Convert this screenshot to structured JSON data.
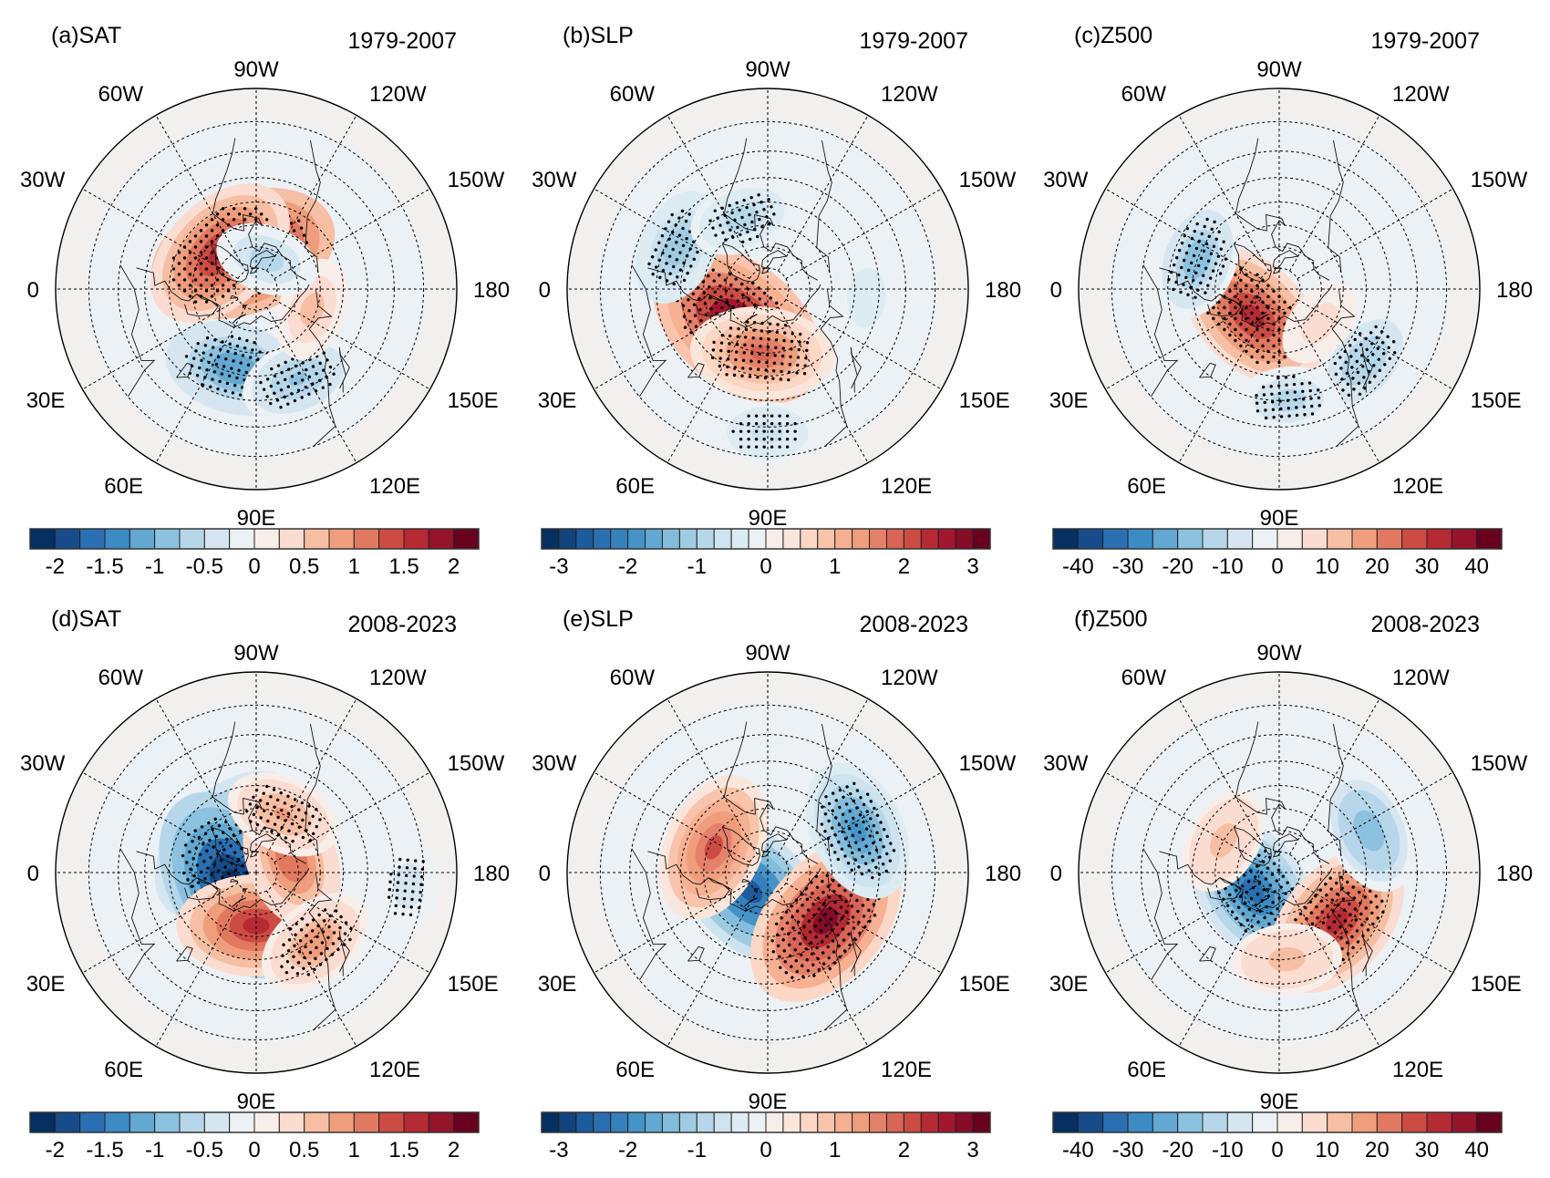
{
  "figure": {
    "type": "polar-stereographic-map-panels",
    "colormap": "RdBu_r",
    "stippling_meaning": "significant",
    "chart_data": [
      {
        "type": "heatmap",
        "id": "a",
        "label": "(a)SAT",
        "period": "1979-2007",
        "variable": "SAT",
        "colorbar": {
          "levels": 18,
          "tick_labels": [
            "-2",
            "-1.5",
            "-1",
            "-0.5",
            "0",
            "0.5",
            "1",
            "1.5",
            "2"
          ],
          "range": [
            -2.25,
            2.25
          ]
        },
        "features": [
          {
            "name": "warm-greenland-baffin",
            "lon": -70,
            "lat": 72,
            "value": 2.0,
            "significant": true
          },
          {
            "name": "warm-greenland-south",
            "lon": -45,
            "lat": 66,
            "value": 1.6,
            "significant": true
          },
          {
            "name": "cold-eurasia",
            "lon": 75,
            "lat": 52,
            "value": -1.2,
            "significant": true
          },
          {
            "name": "cold-east-asia",
            "lon": 115,
            "lat": 45,
            "value": -0.8,
            "significant": true
          },
          {
            "name": "warm-bering",
            "lon": 160,
            "lat": 62,
            "value": 0.6,
            "significant": false
          },
          {
            "name": "cold-canadian-archipelago",
            "lon": -110,
            "lat": 75,
            "value": -0.6,
            "significant": false
          }
        ]
      },
      {
        "type": "heatmap",
        "id": "b",
        "label": "(b)SLP",
        "period": "1979-2007",
        "variable": "SLP",
        "colorbar": {
          "levels": 26,
          "tick_labels": [
            "-3",
            "-2",
            "-1",
            "0",
            "1",
            "2",
            "3"
          ],
          "range": [
            -3.25,
            3.25
          ]
        },
        "features": [
          {
            "name": "high-ural-barents",
            "lon": 50,
            "lat": 68,
            "value": 3.0,
            "significant": true
          },
          {
            "name": "high-siberia",
            "lon": 85,
            "lat": 60,
            "value": 1.8,
            "significant": true
          },
          {
            "name": "low-north-atlantic",
            "lon": -25,
            "lat": 45,
            "value": -1.2,
            "significant": true
          },
          {
            "name": "low-labrador",
            "lon": -70,
            "lat": 55,
            "value": -0.9,
            "significant": true
          },
          {
            "name": "low-north-pacific",
            "lon": 175,
            "lat": 45,
            "value": -0.5,
            "significant": false
          },
          {
            "name": "low-south-asia",
            "lon": 90,
            "lat": 28,
            "value": -0.7,
            "significant": true
          }
        ]
      },
      {
        "type": "heatmap",
        "id": "c",
        "label": "(c)Z500",
        "period": "1979-2007",
        "variable": "Z500",
        "colorbar": {
          "levels": 18,
          "tick_labels": [
            "-40",
            "-30",
            "-20",
            "-10",
            "0",
            "10",
            "20",
            "30",
            "40"
          ],
          "range": [
            -45,
            45
          ]
        },
        "features": [
          {
            "name": "ridge-barents-kara",
            "lon": 45,
            "lat": 72,
            "value": 32,
            "significant": true
          },
          {
            "name": "trough-north-atlantic",
            "lon": -20,
            "lat": 50,
            "value": -18,
            "significant": true
          },
          {
            "name": "trough-east-asia",
            "lon": 140,
            "lat": 40,
            "value": -15,
            "significant": true
          },
          {
            "name": "trough-central-asia",
            "lon": 95,
            "lat": 40,
            "value": -12,
            "significant": true
          },
          {
            "name": "ridge-east-siberia",
            "lon": 140,
            "lat": 65,
            "value": 8,
            "significant": false
          }
        ]
      },
      {
        "type": "heatmap",
        "id": "d",
        "label": "(d)SAT",
        "period": "2008-2023",
        "variable": "SAT",
        "colorbar": {
          "levels": 18,
          "tick_labels": [
            "-2",
            "-1.5",
            "-1",
            "-0.5",
            "0",
            "0.5",
            "1",
            "1.5",
            "2"
          ],
          "range": [
            -2.25,
            2.25
          ]
        },
        "features": [
          {
            "name": "cold-baffin-bay",
            "lon": -45,
            "lat": 72,
            "value": -1.8,
            "significant": true
          },
          {
            "name": "cold-barents",
            "lon": 30,
            "lat": 78,
            "value": -2.2,
            "significant": true
          },
          {
            "name": "warm-siberia",
            "lon": 90,
            "lat": 65,
            "value": 1.5,
            "significant": false
          },
          {
            "name": "warm-east-siberia-alaska",
            "lon": -160,
            "lat": 72,
            "value": 1.2,
            "significant": false
          },
          {
            "name": "warm-canada",
            "lon": -115,
            "lat": 60,
            "value": 0.8,
            "significant": true
          },
          {
            "name": "warm-east-asia",
            "lon": 130,
            "lat": 48,
            "value": 0.9,
            "significant": true
          },
          {
            "name": "cold-north-pacific",
            "lon": 175,
            "lat": 25,
            "value": -0.4,
            "significant": true
          }
        ]
      },
      {
        "type": "heatmap",
        "id": "e",
        "label": "(e)SLP",
        "period": "2008-2023",
        "variable": "SLP",
        "colorbar": {
          "levels": 26,
          "tick_labels": [
            "-3",
            "-2",
            "-1",
            "0",
            "1",
            "2",
            "3"
          ],
          "range": [
            -3.25,
            3.25
          ]
        },
        "features": [
          {
            "name": "low-barents-kara",
            "lon": 45,
            "lat": 78,
            "value": -2.6,
            "significant": false
          },
          {
            "name": "high-greenland-iceland",
            "lon": -25,
            "lat": 62,
            "value": 2.0,
            "significant": false
          },
          {
            "name": "high-east-asia-okhotsk",
            "lon": 140,
            "lat": 55,
            "value": 2.8,
            "significant": true
          },
          {
            "name": "low-north-pacific",
            "lon": -155,
            "lat": 45,
            "value": -1.8,
            "significant": true
          }
        ]
      },
      {
        "type": "heatmap",
        "id": "f",
        "label": "(f)Z500",
        "period": "2008-2023",
        "variable": "Z500",
        "colorbar": {
          "levels": 18,
          "tick_labels": [
            "-40",
            "-30",
            "-20",
            "-10",
            "0",
            "10",
            "20",
            "30",
            "40"
          ],
          "range": [
            -45,
            45
          ]
        },
        "features": [
          {
            "name": "trough-barents-kara",
            "lon": 35,
            "lat": 75,
            "value": -32,
            "significant": true
          },
          {
            "name": "ridge-east-asia",
            "lon": 140,
            "lat": 55,
            "value": 32,
            "significant": true
          },
          {
            "name": "ridge-greenland",
            "lon": -30,
            "lat": 60,
            "value": 14,
            "significant": false
          },
          {
            "name": "ridge-central-asia",
            "lon": 95,
            "lat": 50,
            "value": 14,
            "significant": false
          },
          {
            "name": "trough-north-pacific",
            "lon": -155,
            "lat": 45,
            "value": -20,
            "significant": false
          }
        ]
      }
    ],
    "longitude_labels": {
      "lon_m90": "90W",
      "lon_m60": "60W",
      "lon_m120": "120W",
      "lon_m30": "30W",
      "lon_m150": "150W",
      "lon_0": "0",
      "lon_180": "180",
      "lon_30": "30E",
      "lon_150": "150E",
      "lon_60": "60E",
      "lon_120": "120E",
      "lon_90": "90E"
    },
    "colors": {
      "bar_sat": [
        "#053061",
        "#174b8a",
        "#2a6fb1",
        "#3c8bc3",
        "#62a8d1",
        "#8cc2df",
        "#b6d7e9",
        "#d6e6f1",
        "#ecf1f5",
        "#f8eee9",
        "#fbdcd0",
        "#f6bea3",
        "#ef9e7d",
        "#e17860",
        "#cc4c43",
        "#b52a33",
        "#93142b",
        "#67001f"
      ],
      "bar_slp": [
        "#053061",
        "#12437c",
        "#1c5b9c",
        "#2a6fb1",
        "#3581bc",
        "#4594c8",
        "#62a8d1",
        "#84bddb",
        "#9fcbe2",
        "#b6d7e9",
        "#cde3ef",
        "#ddebf3",
        "#ecf1f5",
        "#f8eee9",
        "#fbe6dc",
        "#fcd7c5",
        "#f9c4ab",
        "#f6b092",
        "#ef9e7d",
        "#e5806a",
        "#d86556",
        "#cc4c43",
        "#b52a33",
        "#a2172f",
        "#870c27",
        "#67001f"
      ]
    }
  }
}
